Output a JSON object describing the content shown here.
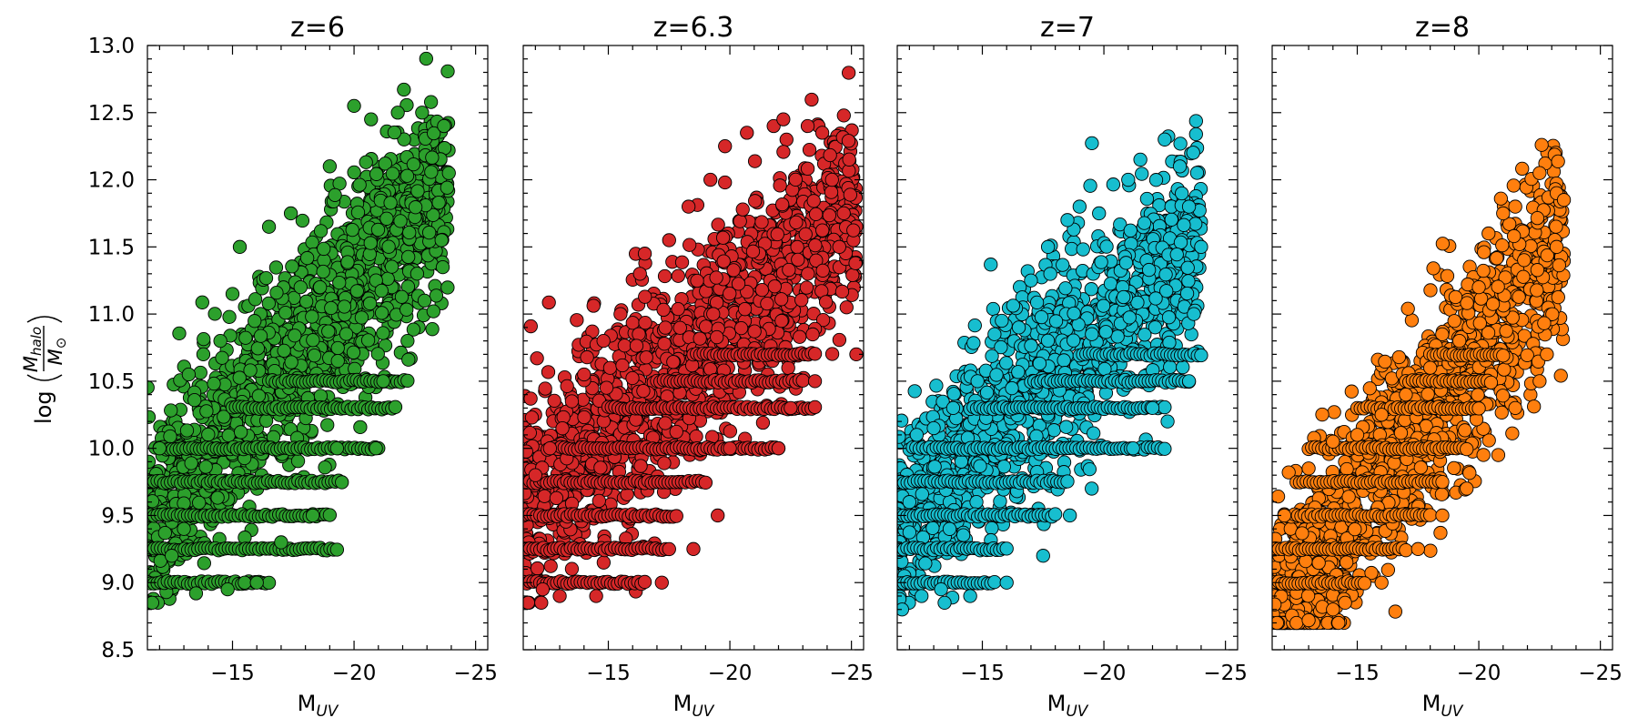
{
  "chart_data": {
    "type": "scatter",
    "ylabel": "log(M_halo / M_⊙)",
    "ylabel_prefix": "log",
    "ylabel_numerator": "M",
    "ylabel_numerator_sub": "halo",
    "ylabel_denominator": "M",
    "ylabel_denominator_sub": "⊙",
    "ylim": [
      8.5,
      13.0
    ],
    "y_ticks": [
      8.5,
      9.0,
      9.5,
      10.0,
      10.5,
      11.0,
      11.5,
      12.0,
      12.5,
      13.0
    ],
    "y_tick_labels": [
      "8.5",
      "9.0",
      "9.5",
      "10.0",
      "10.5",
      "11.0",
      "11.5",
      "12.0",
      "12.5",
      "13.0"
    ],
    "y_minor_step": 0.1,
    "xlim": [
      -11.5,
      -25.5
    ],
    "x_ticks": [
      -15,
      -20,
      -25
    ],
    "x_tick_labels": [
      "−15",
      "−20",
      "−25"
    ],
    "x_minor_step": 1,
    "xlabel_main": "M",
    "xlabel_sub": "UV",
    "marker_edge_color": "#000000",
    "grid": false,
    "panels": [
      {
        "title": "z=6",
        "color": "#2ca02c",
        "sample_points": [
          [
            -11.7,
            8.85
          ],
          [
            -12.5,
            9.2
          ],
          [
            -13.0,
            9.4
          ],
          [
            -12.0,
            10.0
          ],
          [
            -13.2,
            10.55
          ],
          [
            -13.8,
            10.7
          ],
          [
            -14.5,
            10.8
          ],
          [
            -15.0,
            11.15
          ],
          [
            -15.3,
            11.5
          ],
          [
            -16.5,
            11.65
          ],
          [
            -17.4,
            11.75
          ],
          [
            -17.8,
            11.2
          ],
          [
            -18.6,
            11.2
          ],
          [
            -19.0,
            12.1
          ],
          [
            -20.0,
            12.55
          ],
          [
            -20.7,
            12.45
          ],
          [
            -21.8,
            12.5
          ],
          [
            -22.8,
            12.5
          ],
          [
            -23.7,
            12.4
          ],
          [
            -23.9,
            12.05
          ],
          [
            -23.6,
            11.55
          ],
          [
            -22.9,
            11.1
          ],
          [
            -22.2,
            10.8
          ],
          [
            -21.2,
            10.5
          ],
          [
            -20.9,
            10.0
          ],
          [
            -19.3,
            10.0
          ],
          [
            -18.3,
            9.5
          ],
          [
            -17.0,
            9.3
          ],
          [
            -15.5,
            9.0
          ],
          [
            -14.8,
            8.95
          ],
          [
            -13.5,
            8.92
          ],
          [
            -16.0,
            9.0
          ]
        ],
        "bands": [
          {
            "y": 9.0,
            "x_from": -11.5,
            "x_to": -16.5
          },
          {
            "y": 9.25,
            "x_from": -11.5,
            "x_to": -19.3
          },
          {
            "y": 9.5,
            "x_from": -11.5,
            "x_to": -19.0
          },
          {
            "y": 9.75,
            "x_from": -11.5,
            "x_to": -19.5
          },
          {
            "y": 10.0,
            "x_from": -12.0,
            "x_to": -21.0
          },
          {
            "y": 10.3,
            "x_from": -15.0,
            "x_to": -21.7
          },
          {
            "y": 10.5,
            "x_from": -16.5,
            "x_to": -22.2
          }
        ]
      },
      {
        "title": "z=6.3",
        "color": "#d62728",
        "sample_points": [
          [
            -11.7,
            8.85
          ],
          [
            -12.3,
            8.95
          ],
          [
            -13.0,
            8.9
          ],
          [
            -12.0,
            9.8
          ],
          [
            -12.6,
            10.0
          ],
          [
            -13.5,
            10.35
          ],
          [
            -14.0,
            10.55
          ],
          [
            -14.8,
            10.8
          ],
          [
            -15.5,
            11.0
          ],
          [
            -16.3,
            11.3
          ],
          [
            -16.5,
            11.45
          ],
          [
            -17.5,
            11.55
          ],
          [
            -18.3,
            11.8
          ],
          [
            -19.2,
            12.0
          ],
          [
            -19.8,
            12.25
          ],
          [
            -20.7,
            12.35
          ],
          [
            -21.8,
            12.4
          ],
          [
            -22.2,
            12.45
          ],
          [
            -23.2,
            12.4
          ],
          [
            -23.8,
            12.35
          ],
          [
            -24.2,
            12.0
          ],
          [
            -24.5,
            11.5
          ],
          [
            -24.8,
            11.05
          ],
          [
            -25.2,
            10.7
          ],
          [
            -23.5,
            10.5
          ],
          [
            -22.5,
            10.3
          ],
          [
            -22.0,
            10.0
          ],
          [
            -20.0,
            10.0
          ],
          [
            -19.5,
            9.5
          ],
          [
            -18.5,
            9.25
          ],
          [
            -17.2,
            9.0
          ],
          [
            -14.5,
            8.9
          ]
        ],
        "bands": [
          {
            "y": 9.0,
            "x_from": -11.5,
            "x_to": -16.5
          },
          {
            "y": 9.25,
            "x_from": -11.5,
            "x_to": -17.5
          },
          {
            "y": 9.5,
            "x_from": -11.5,
            "x_to": -17.8
          },
          {
            "y": 9.75,
            "x_from": -11.5,
            "x_to": -19.0
          },
          {
            "y": 10.0,
            "x_from": -12.5,
            "x_to": -22.0
          },
          {
            "y": 10.3,
            "x_from": -15.0,
            "x_to": -23.5
          },
          {
            "y": 10.5,
            "x_from": -17.0,
            "x_to": -23.0
          },
          {
            "y": 10.7,
            "x_from": -18.5,
            "x_to": -23.5
          }
        ]
      },
      {
        "title": "z=7",
        "color": "#17becf",
        "sample_points": [
          [
            -11.7,
            8.8
          ],
          [
            -12.5,
            8.9
          ],
          [
            -13.3,
            8.95
          ],
          [
            -12.0,
            9.6
          ],
          [
            -12.3,
            10.1
          ],
          [
            -13.0,
            10.15
          ],
          [
            -13.8,
            10.3
          ],
          [
            -14.8,
            10.5
          ],
          [
            -15.5,
            10.85
          ],
          [
            -15.8,
            10.95
          ],
          [
            -16.5,
            10.9
          ],
          [
            -17.0,
            11.25
          ],
          [
            -17.7,
            11.5
          ],
          [
            -18.5,
            11.7
          ],
          [
            -19.0,
            11.8
          ],
          [
            -19.8,
            11.75
          ],
          [
            -21.0,
            12.0
          ],
          [
            -21.5,
            12.15
          ],
          [
            -22.5,
            12.3
          ],
          [
            -23.5,
            11.8
          ],
          [
            -24.0,
            11.5
          ],
          [
            -23.7,
            11.0
          ],
          [
            -23.5,
            10.5
          ],
          [
            -22.0,
            10.3
          ],
          [
            -21.2,
            10.0
          ],
          [
            -19.5,
            9.7
          ],
          [
            -18.6,
            9.5
          ],
          [
            -17.5,
            9.2
          ],
          [
            -16.0,
            9.0
          ],
          [
            -14.5,
            8.9
          ]
        ],
        "bands": [
          {
            "y": 9.0,
            "x_from": -11.5,
            "x_to": -15.5
          },
          {
            "y": 9.25,
            "x_from": -11.5,
            "x_to": -16.0
          },
          {
            "y": 9.5,
            "x_from": -11.5,
            "x_to": -18.0
          },
          {
            "y": 9.75,
            "x_from": -11.5,
            "x_to": -18.5
          },
          {
            "y": 10.0,
            "x_from": -12.0,
            "x_to": -22.5
          },
          {
            "y": 10.3,
            "x_from": -14.5,
            "x_to": -22.5
          },
          {
            "y": 10.5,
            "x_from": -17.0,
            "x_to": -23.5
          },
          {
            "y": 10.7,
            "x_from": -19.0,
            "x_to": -24.0
          }
        ]
      },
      {
        "title": "z=8",
        "color": "#ff7f0e",
        "sample_points": [
          [
            -11.7,
            8.7
          ],
          [
            -12.5,
            8.7
          ],
          [
            -13.0,
            8.72
          ],
          [
            -14.0,
            8.8
          ],
          [
            -12.0,
            9.5
          ],
          [
            -13.0,
            9.85
          ],
          [
            -14.0,
            10.05
          ],
          [
            -15.0,
            10.1
          ],
          [
            -16.0,
            10.25
          ],
          [
            -17.0,
            10.4
          ],
          [
            -18.0,
            10.6
          ],
          [
            -19.2,
            10.8
          ],
          [
            -20.0,
            11.2
          ],
          [
            -20.4,
            11.6
          ],
          [
            -21.0,
            11.75
          ],
          [
            -21.5,
            11.8
          ],
          [
            -22.5,
            12.05
          ],
          [
            -23.2,
            11.9
          ],
          [
            -23.5,
            11.85
          ],
          [
            -23.2,
            11.5
          ],
          [
            -22.8,
            10.7
          ],
          [
            -22.5,
            10.5
          ],
          [
            -21.5,
            10.3
          ],
          [
            -20.8,
            9.95
          ],
          [
            -19.5,
            9.7
          ],
          [
            -18.5,
            9.5
          ],
          [
            -17.5,
            9.25
          ],
          [
            -16.0,
            9.0
          ],
          [
            -14.5,
            8.85
          ]
        ],
        "bands": [
          {
            "y": 9.0,
            "x_from": -11.5,
            "x_to": -15.3
          },
          {
            "y": 9.25,
            "x_from": -11.5,
            "x_to": -17.0
          },
          {
            "y": 9.5,
            "x_from": -12.0,
            "x_to": -18.0
          },
          {
            "y": 9.75,
            "x_from": -12.5,
            "x_to": -18.5
          },
          {
            "y": 10.0,
            "x_from": -13.0,
            "x_to": -19.5
          },
          {
            "y": 10.3,
            "x_from": -15.0,
            "x_to": -20.0
          },
          {
            "y": 10.5,
            "x_from": -17.0,
            "x_to": -20.5
          },
          {
            "y": 10.7,
            "x_from": -18.0,
            "x_to": -21.0
          }
        ]
      }
    ]
  }
}
